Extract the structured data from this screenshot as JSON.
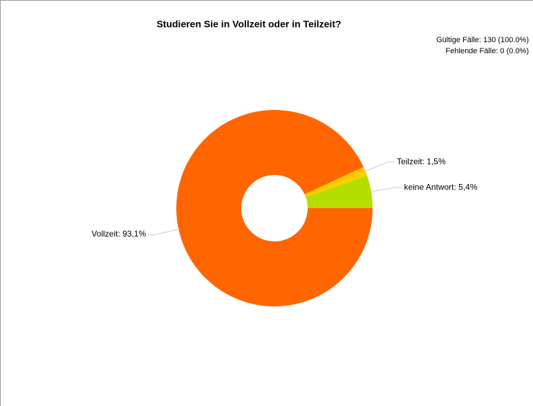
{
  "chart_data": {
    "type": "donut",
    "title": "Studieren Sie in Vollzeit oder in Teilzeit?",
    "annotations": [
      "Gültige Fälle: 130 (100.0%)",
      "Fehlende Fälle: 0 (0.0%)"
    ],
    "values": [
      5.4,
      1.5,
      93.1
    ],
    "value_labels": [
      "keine Antwort: 5,4%",
      "Teilzeit: 1,5%",
      "Vollzeit: 93,1%"
    ],
    "colors": [
      "#b3de00",
      "#ffcc00",
      "#ff6600"
    ]
  }
}
